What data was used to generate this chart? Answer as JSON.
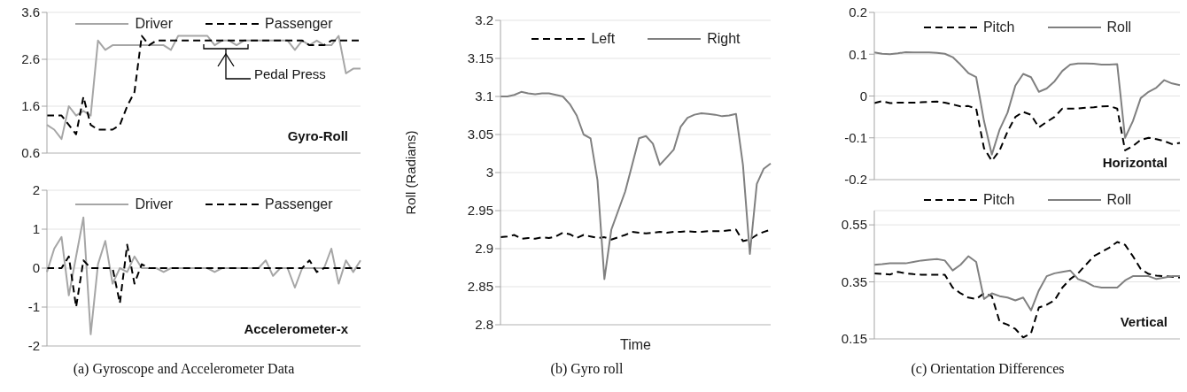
{
  "chart_data": [
    {
      "type": "line",
      "title": "Gyro-Roll",
      "categories": [
        null,
        null,
        null,
        null,
        null,
        null,
        null,
        null,
        null,
        null,
        null,
        null,
        null,
        null,
        null,
        null,
        null,
        null,
        null,
        null,
        null,
        null,
        null,
        null,
        null,
        null,
        null,
        null,
        null,
        null,
        null,
        null,
        null,
        null,
        null,
        null,
        null,
        null,
        null,
        null,
        null,
        null,
        null,
        null
      ],
      "series": [
        {
          "name": "Driver",
          "color": "#a6a6a6",
          "line_style": "solid",
          "values": [
            1.2,
            1.1,
            0.9,
            1.6,
            1.4,
            1.5,
            1.4,
            3.0,
            2.8,
            2.9,
            2.9,
            2.9,
            2.9,
            2.9,
            2.9,
            2.9,
            2.9,
            2.8,
            3.1,
            3.1,
            3.1,
            3.1,
            3.1,
            2.9,
            3.0,
            3.0,
            2.9,
            3.0,
            3.0,
            3.0,
            3.0,
            3.0,
            3.0,
            3.0,
            2.8,
            3.0,
            2.9,
            3.0,
            2.9,
            2.9,
            3.1,
            2.3,
            2.4,
            2.4
          ]
        },
        {
          "name": "Passenger",
          "color": "#000000",
          "line_style": "dashed",
          "values": [
            1.4,
            1.4,
            1.4,
            1.2,
            1.0,
            1.8,
            1.2,
            1.1,
            1.1,
            1.1,
            1.2,
            1.6,
            1.9,
            3.1,
            2.9,
            3.0,
            3.0,
            3.0,
            3.0,
            3.0,
            3.0,
            3.0,
            3.0,
            3.0,
            3.0,
            3.0,
            3.0,
            3.0,
            3.0,
            3.0,
            3.0,
            3.0,
            3.0,
            3.0,
            3.0,
            3.0,
            2.9,
            2.9,
            2.9,
            3.0,
            3.0,
            3.0,
            3.0,
            3.0
          ]
        }
      ],
      "ylim": [
        0.6,
        3.6
      ],
      "yticks": [
        0.6,
        1.6,
        2.6,
        3.6
      ],
      "grid": "y",
      "legend": "top",
      "tick_labels": "y",
      "annotations": [
        {
          "text": "Pedal Press",
          "y": 2.83
        }
      ]
    },
    {
      "type": "line",
      "title": "Accelerometer-x",
      "categories": [
        null,
        null,
        null,
        null,
        null,
        null,
        null,
        null,
        null,
        null,
        null,
        null,
        null,
        null,
        null,
        null,
        null,
        null,
        null,
        null,
        null,
        null,
        null,
        null,
        null,
        null,
        null,
        null,
        null,
        null,
        null,
        null,
        null,
        null,
        null,
        null,
        null,
        null,
        null,
        null,
        null,
        null,
        null,
        null
      ],
      "series": [
        {
          "name": "Driver",
          "color": "#a6a6a6",
          "line_style": "solid",
          "values": [
            -0.1,
            0.5,
            0.8,
            -0.7,
            0.3,
            1.3,
            -1.7,
            0.1,
            0.7,
            -0.4,
            0,
            -0.1,
            0.3,
            0,
            0,
            0,
            -0.1,
            0,
            0,
            0,
            0,
            0,
            0,
            -0.1,
            0,
            0,
            0,
            0,
            0,
            0,
            0.2,
            -0.2,
            0,
            0,
            -0.5,
            0,
            0,
            0,
            0,
            0.5,
            -0.4,
            0.2,
            -0.1,
            0.2
          ]
        },
        {
          "name": "Passenger",
          "color": "#000000",
          "line_style": "dashed",
          "values": [
            0,
            0,
            0,
            0.3,
            -1.0,
            0.2,
            0,
            0,
            0,
            0,
            -0.9,
            0.6,
            -0.4,
            0.1,
            0,
            0,
            0,
            0,
            0,
            0,
            0,
            0,
            0,
            0,
            0,
            0,
            0,
            0,
            0,
            0,
            0,
            0,
            0,
            0,
            0,
            0,
            0.2,
            -0.1,
            0,
            0,
            0,
            0,
            0,
            0
          ]
        }
      ],
      "ylim": [
        -2,
        2
      ],
      "yticks": [
        -2,
        -1,
        0,
        1,
        2
      ],
      "grid": "y",
      "legend": "top",
      "tick_labels": "y",
      "annotations": [
        "(a) Gyroscope and Accelerometer Data"
      ]
    },
    {
      "type": "line",
      "xlabel": "Time",
      "ylabel": "Roll (Radians)",
      "categories": [
        null,
        null,
        null,
        null,
        null,
        null,
        null,
        null,
        null,
        null,
        null,
        null,
        null,
        null,
        null,
        null,
        null,
        null,
        null,
        null,
        null,
        null,
        null,
        null,
        null,
        null,
        null,
        null,
        null,
        null,
        null,
        null,
        null,
        null,
        null,
        null,
        null,
        null,
        null,
        null
      ],
      "series": [
        {
          "name": "Left",
          "color": "#000000",
          "line_style": "dashed",
          "values": [
            2.915,
            2.916,
            2.918,
            2.913,
            2.914,
            2.913,
            2.915,
            2.914,
            2.916,
            2.921,
            2.919,
            2.914,
            2.918,
            2.916,
            2.914,
            2.915,
            2.912,
            2.915,
            2.918,
            2.922,
            2.921,
            2.92,
            2.921,
            2.922,
            2.921,
            2.922,
            2.922,
            2.923,
            2.922,
            2.922,
            2.923,
            2.923,
            2.923,
            2.924,
            2.925,
            2.91,
            2.912,
            2.918,
            2.922,
            2.925
          ]
        },
        {
          "name": "Right",
          "color": "#808080",
          "line_style": "solid",
          "values": [
            3.1,
            3.1,
            3.102,
            3.106,
            3.104,
            3.103,
            3.104,
            3.104,
            3.102,
            3.1,
            3.09,
            3.075,
            3.05,
            3.045,
            2.99,
            2.86,
            2.925,
            2.95,
            2.975,
            3.01,
            3.045,
            3.048,
            3.038,
            3.01,
            3.02,
            3.03,
            3.06,
            3.072,
            3.076,
            3.078,
            3.077,
            3.076,
            3.074,
            3.075,
            3.077,
            3.01,
            2.893,
            2.985,
            3.005,
            3.012
          ]
        }
      ],
      "ylim": [
        2.8,
        3.2
      ],
      "yticks": [
        2.8,
        2.85,
        2.9,
        2.95,
        3,
        3.05,
        3.1,
        3.15,
        3.2
      ],
      "grid": "y",
      "legend": "top",
      "tick_labels": "y",
      "annotations": [
        "(b) Gyro roll"
      ]
    },
    {
      "type": "line",
      "title": "Horizontal",
      "categories": [
        null,
        null,
        null,
        null,
        null,
        null,
        null,
        null,
        null,
        null,
        null,
        null,
        null,
        null,
        null,
        null,
        null,
        null,
        null,
        null,
        null,
        null,
        null,
        null,
        null,
        null,
        null,
        null,
        null,
        null,
        null,
        null,
        null,
        null,
        null,
        null,
        null,
        null,
        null,
        null
      ],
      "series": [
        {
          "name": "Pitch",
          "color": "#000000",
          "line_style": "dashed",
          "values": [
            -0.017,
            -0.012,
            -0.017,
            -0.016,
            -0.016,
            -0.016,
            -0.015,
            -0.014,
            -0.013,
            -0.016,
            -0.02,
            -0.025,
            -0.024,
            -0.03,
            -0.125,
            -0.155,
            -0.13,
            -0.085,
            -0.05,
            -0.038,
            -0.045,
            -0.075,
            -0.062,
            -0.05,
            -0.03,
            -0.03,
            -0.03,
            -0.028,
            -0.027,
            -0.025,
            -0.024,
            -0.03,
            -0.13,
            -0.12,
            -0.105,
            -0.1,
            -0.103,
            -0.108,
            -0.115,
            -0.112
          ]
        },
        {
          "name": "Roll",
          "color": "#808080",
          "line_style": "solid",
          "values": [
            0.104,
            0.101,
            0.1,
            0.102,
            0.105,
            0.104,
            0.104,
            0.104,
            0.103,
            0.101,
            0.093,
            0.075,
            0.055,
            0.045,
            -0.06,
            -0.14,
            -0.08,
            -0.04,
            0.025,
            0.053,
            0.045,
            0.01,
            0.018,
            0.035,
            0.06,
            0.075,
            0.078,
            0.078,
            0.077,
            0.075,
            0.075,
            0.076,
            -0.1,
            -0.06,
            -0.005,
            0.01,
            0.02,
            0.038,
            0.03,
            0.026
          ]
        }
      ],
      "ylim": [
        -0.2,
        0.2
      ],
      "yticks": [
        -0.2,
        -0.1,
        0,
        0.1,
        0.2
      ],
      "grid": "y",
      "legend": "top",
      "tick_labels": "y"
    },
    {
      "type": "line",
      "title": "Vertical",
      "categories": [
        null,
        null,
        null,
        null,
        null,
        null,
        null,
        null,
        null,
        null,
        null,
        null,
        null,
        null,
        null,
        null,
        null,
        null,
        null,
        null,
        null,
        null,
        null,
        null,
        null,
        null,
        null,
        null,
        null,
        null,
        null,
        null,
        null,
        null,
        null,
        null,
        null,
        null,
        null,
        null
      ],
      "series": [
        {
          "name": "Pitch",
          "color": "#000000",
          "line_style": "dashed",
          "values": [
            0.38,
            0.378,
            0.376,
            0.385,
            0.38,
            0.377,
            0.375,
            0.375,
            0.375,
            0.375,
            0.33,
            0.31,
            0.295,
            0.29,
            0.31,
            0.3,
            0.21,
            0.2,
            0.185,
            0.155,
            0.17,
            0.26,
            0.27,
            0.285,
            0.33,
            0.36,
            0.38,
            0.41,
            0.44,
            0.455,
            0.47,
            0.49,
            0.48,
            0.44,
            0.395,
            0.378,
            0.372,
            0.37,
            0.368,
            0.365
          ]
        },
        {
          "name": "Roll",
          "color": "#808080",
          "line_style": "solid",
          "values": [
            0.41,
            0.412,
            0.415,
            0.415,
            0.415,
            0.42,
            0.425,
            0.428,
            0.43,
            0.425,
            0.39,
            0.41,
            0.44,
            0.42,
            0.29,
            0.31,
            0.3,
            0.295,
            0.285,
            0.295,
            0.25,
            0.32,
            0.37,
            0.38,
            0.385,
            0.39,
            0.36,
            0.35,
            0.335,
            0.33,
            0.33,
            0.33,
            0.355,
            0.37,
            0.37,
            0.37,
            0.36,
            0.365,
            0.37,
            0.37
          ]
        }
      ],
      "ylim": [
        0.15,
        0.6
      ],
      "yticks": [
        0.15,
        0.35,
        0.55
      ],
      "grid": "y",
      "legend": "top",
      "tick_labels": "y",
      "annotations": [
        "(c) Orientation Differences"
      ]
    }
  ]
}
